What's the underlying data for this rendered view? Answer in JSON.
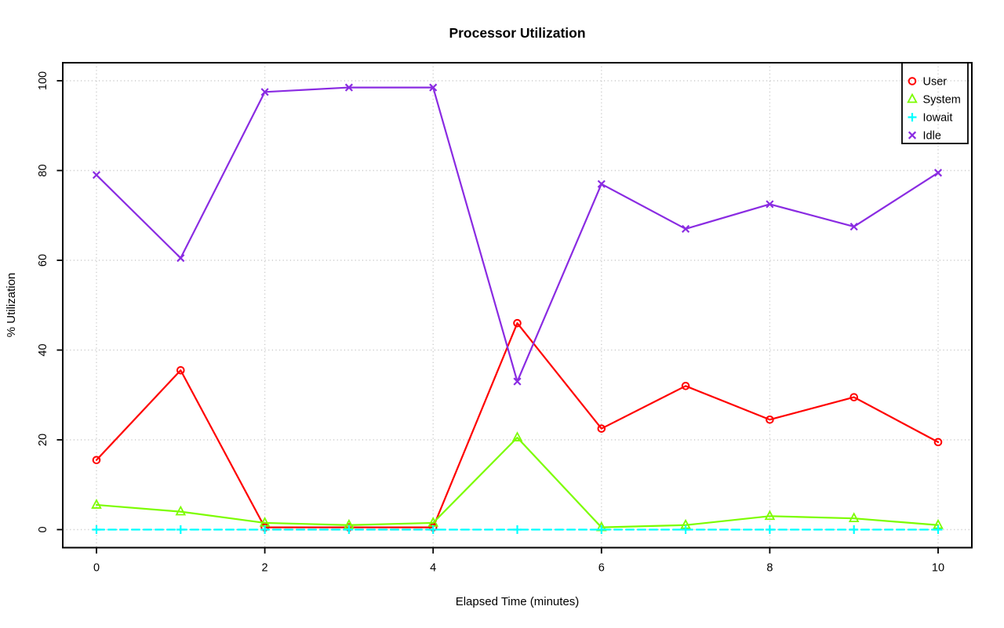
{
  "chart_data": {
    "type": "line",
    "title": "Processor Utilization",
    "xlabel": "Elapsed Time (minutes)",
    "ylabel": "% Utilization",
    "x": [
      0,
      1,
      2,
      3,
      4,
      5,
      6,
      7,
      8,
      9,
      10
    ],
    "xticks": [
      0,
      2,
      4,
      6,
      8,
      10
    ],
    "yticks": [
      0,
      20,
      40,
      60,
      80,
      100
    ],
    "xlim": [
      -0.4,
      10.4
    ],
    "ylim": [
      -4,
      104
    ],
    "grid": "dotted-lightgray",
    "background": "#ffffff",
    "axis_color": "#000000",
    "grid_color": "#cccccc",
    "legend_position": "top-right",
    "legend_entries": [
      "User",
      "System",
      "Iowait",
      "Idle"
    ],
    "series": [
      {
        "name": "User",
        "color": "#ff0000",
        "marker": "circle",
        "line_style": "solid",
        "values": [
          15.5,
          35.5,
          0.5,
          0.5,
          0.5,
          46,
          22.5,
          32,
          24.5,
          29.5,
          19.5
        ]
      },
      {
        "name": "System",
        "color": "#7cfc00",
        "marker": "triangle",
        "line_style": "solid",
        "values": [
          5.5,
          4,
          1.5,
          1,
          1.5,
          20.5,
          0.5,
          1,
          3,
          2.5,
          1
        ]
      },
      {
        "name": "Iowait",
        "color": "#00ffff",
        "marker": "plus",
        "line_style": "dashed",
        "values": [
          0,
          0,
          0,
          0,
          0,
          0,
          0,
          0,
          0,
          0,
          0
        ]
      },
      {
        "name": "Idle",
        "color": "#8a2be2",
        "marker": "x",
        "line_style": "solid",
        "values": [
          79,
          60.5,
          97.5,
          98.5,
          98.5,
          33,
          77,
          67,
          72.5,
          67.5,
          79.5
        ]
      }
    ]
  }
}
